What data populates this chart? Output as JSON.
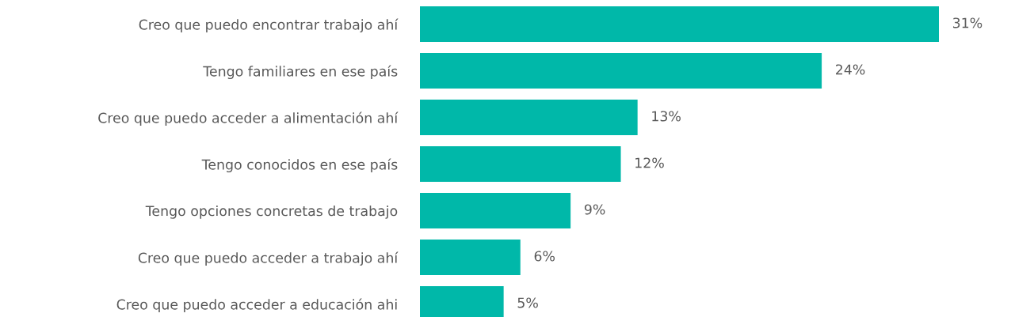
{
  "chart_data": {
    "type": "bar",
    "orientation": "horizontal",
    "categories": [
      "Creo que puedo encontrar trabajo ahí",
      "Tengo familiares en ese país",
      "Creo que puedo acceder a alimentación ahí",
      "Tengo conocidos en ese país",
      "Tengo opciones concretas de trabajo",
      "Creo que puedo acceder a trabajo ahí",
      "Creo que puedo acceder a educación ahi"
    ],
    "values": [
      31,
      24,
      13,
      12,
      9,
      6,
      5
    ],
    "value_labels": [
      "31%",
      "24%",
      "13%",
      "12%",
      "9%",
      "6%",
      "5%"
    ],
    "color": "#00b8a9",
    "grid": false,
    "legend": false,
    "tick_labels": "y"
  }
}
